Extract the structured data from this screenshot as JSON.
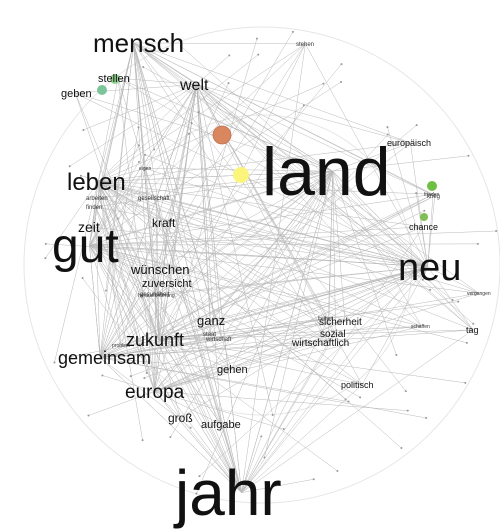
{
  "graph": {
    "type": "word-cooccurrence-network",
    "words": [
      {
        "id": "land",
        "text": "land",
        "weight": 1.0
      },
      {
        "id": "jahr",
        "text": "jahr",
        "weight": 1.0
      },
      {
        "id": "gut",
        "text": "gut",
        "weight": 0.8
      },
      {
        "id": "neu",
        "text": "neu",
        "weight": 0.62
      },
      {
        "id": "mensch",
        "text": "mensch",
        "weight": 0.45
      },
      {
        "id": "leben",
        "text": "leben",
        "weight": 0.4
      },
      {
        "id": "europa",
        "text": "europa",
        "weight": 0.36
      },
      {
        "id": "gemeinsam",
        "text": "gemeinsam",
        "weight": 0.33
      },
      {
        "id": "zukunft",
        "text": "zukunft",
        "weight": 0.33
      },
      {
        "id": "welt",
        "text": "welt",
        "weight": 0.27
      },
      {
        "id": "wuenschen",
        "text": "wünschen",
        "weight": 0.2
      },
      {
        "id": "ganz",
        "text": "ganz",
        "weight": 0.2
      },
      {
        "id": "gross",
        "text": "groß",
        "weight": 0.2
      },
      {
        "id": "zeit",
        "text": "zeit",
        "weight": 0.2
      },
      {
        "id": "stellen",
        "text": "stellen",
        "weight": 0.17
      },
      {
        "id": "kraft",
        "text": "kraft",
        "weight": 0.17
      },
      {
        "id": "geben",
        "text": "geben",
        "weight": 0.15
      },
      {
        "id": "zuversicht",
        "text": "zuversicht",
        "weight": 0.15
      },
      {
        "id": "gehen",
        "text": "gehen",
        "weight": 0.14
      },
      {
        "id": "aufgabe",
        "text": "aufgabe",
        "weight": 0.14
      },
      {
        "id": "sicherheit",
        "text": "sicherheit",
        "weight": 0.13
      },
      {
        "id": "sozial",
        "text": "sozial",
        "weight": 0.13
      },
      {
        "id": "wirtschaftlich",
        "text": "wirtschaftlich",
        "weight": 0.12
      },
      {
        "id": "chance",
        "text": "chance",
        "weight": 0.12
      },
      {
        "id": "politisch",
        "text": "politisch",
        "weight": 0.11
      },
      {
        "id": "europaeisch",
        "text": "europäisch",
        "weight": 0.11
      },
      {
        "id": "tag",
        "text": "tag",
        "weight": 0.11
      },
      {
        "id": "gesellschaft",
        "text": "gesellschaft",
        "weight": 0.07
      },
      {
        "id": "arbeiten",
        "text": "arbeiten",
        "weight": 0.06
      },
      {
        "id": "finden",
        "text": "finden",
        "weight": 0.06
      },
      {
        "id": "krieg",
        "text": "krieg",
        "weight": 0.06
      },
      {
        "id": "stehen",
        "text": "stehen",
        "weight": 0.06
      },
      {
        "id": "eigen",
        "text": "eigen",
        "weight": 0.05
      },
      {
        "id": "schaffen",
        "text": "schaffen",
        "weight": 0.05
      },
      {
        "id": "vergangen",
        "text": "vergangen",
        "weight": 0.05
      },
      {
        "id": "problem",
        "text": "problem",
        "weight": 0.05
      },
      {
        "id": "staat",
        "text": "staat",
        "weight": 0.05
      },
      {
        "id": "wirtschaft",
        "text": "wirtschaft",
        "weight": 0.05
      },
      {
        "id": "gesundheit",
        "text": "gesundheit",
        "weight": 0.05
      },
      {
        "id": "herausforderung",
        "text": "herausforderung",
        "weight": 0.04
      },
      {
        "id": "frieden",
        "text": "frieden",
        "weight": 0.04
      },
      {
        "id": "freiheit",
        "text": "freiheit",
        "weight": 0.03
      }
    ],
    "nodes": [
      {
        "id": "n-orange-big",
        "color": "#d9875f",
        "near": "welt"
      },
      {
        "id": "n-yellow",
        "color": "#fbf57c",
        "near": "land"
      },
      {
        "id": "n-green-stellen",
        "color": "#8fcf8f",
        "near": "stellen"
      },
      {
        "id": "n-green-geben",
        "color": "#7cc49a",
        "near": "geben"
      },
      {
        "id": "n-green-krieg-1",
        "color": "#6fbf44",
        "near": "krieg"
      },
      {
        "id": "n-green-krieg-2",
        "color": "#7fbf55",
        "near": "chance"
      }
    ]
  }
}
